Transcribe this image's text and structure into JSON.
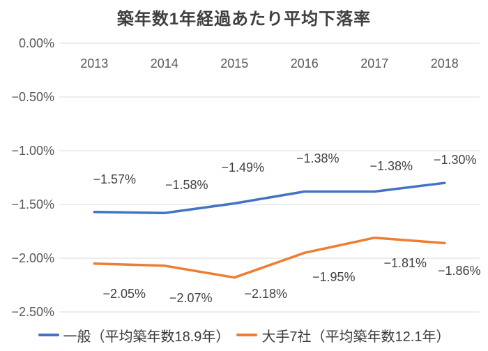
{
  "chart_data": {
    "type": "line",
    "title": "築年数1年経過あたり平均下落率",
    "categories": [
      "2013",
      "2014",
      "2015",
      "2016",
      "2017",
      "2018"
    ],
    "series": [
      {
        "name": "一般（平均築年数18.9年）",
        "color": "#4472c4",
        "values": [
          -1.57,
          -1.58,
          -1.49,
          -1.38,
          -1.38,
          -1.3
        ],
        "labels": [
          "−1.57%",
          "−1.58%",
          "−1.49%",
          "−1.38%",
          "−1.38%",
          "−1.30%"
        ]
      },
      {
        "name": "大手7社（平均築年数12.1年）",
        "color": "#ed7d31",
        "values": [
          -2.05,
          -2.07,
          -2.18,
          -1.95,
          -1.81,
          -1.86
        ],
        "labels": [
          "−2.05%",
          "−2.07%",
          "−2.18%",
          "−1.95%",
          "−1.81%",
          "−1.86%"
        ]
      }
    ],
    "y_axis": {
      "ticks": [
        "0.00%",
        "−0.50%",
        "−1.00%",
        "−1.50%",
        "−2.00%",
        "−2.50%"
      ],
      "tick_values": [
        0,
        -0.5,
        -1.0,
        -1.5,
        -2.0,
        -2.5
      ],
      "min": -2.5,
      "max": 0
    },
    "xlabel": "",
    "ylabel": "",
    "grid": true,
    "legend_position": "bottom",
    "colors": {
      "grid": "#d9d9d9",
      "title_text": "#3f3f3f",
      "axis_text": "#595959",
      "label_text": "#404040",
      "background": "#ffffff"
    }
  }
}
